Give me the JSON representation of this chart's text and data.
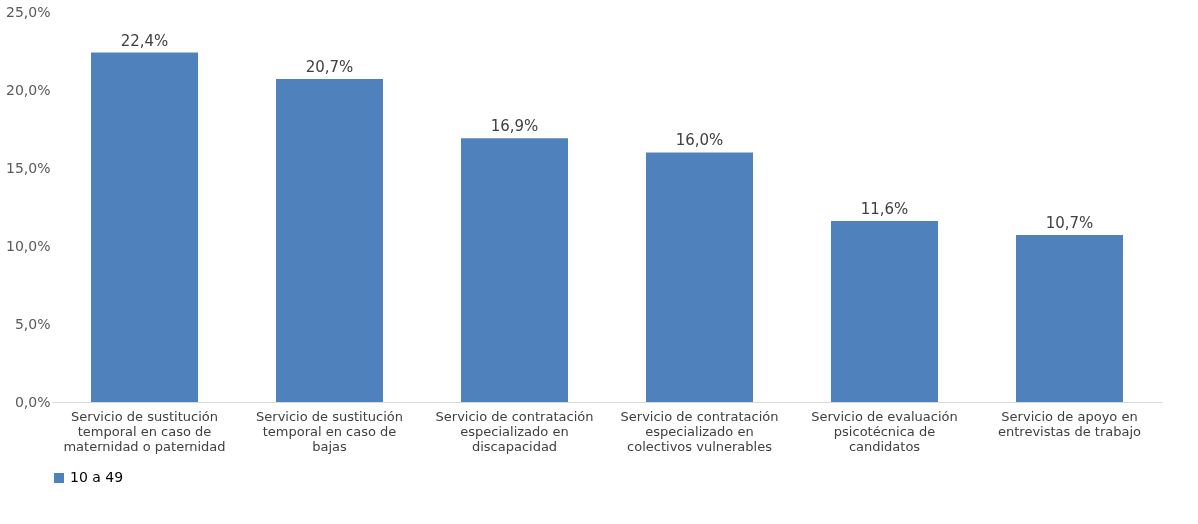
{
  "chart_data": {
    "type": "bar",
    "categories": [
      "Servicio de sustitución temporal en caso de maternidad o paternidad",
      "Servicio de sustitución temporal en caso de bajas",
      "Servicio de contratación especializado en discapacidad",
      "Servicio de contratación especializado en colectivos vulnerables",
      "Servicio de evaluación psicotécnica de candidatos",
      "Servicio de apoyo en entrevistas de trabajo"
    ],
    "series": [
      {
        "name": "10 a 49",
        "color": "#4f81bd",
        "values": [
          22.4,
          20.7,
          16.9,
          16.0,
          11.6,
          10.7
        ],
        "value_labels": [
          "22,4%",
          "20,7%",
          "16,9%",
          "16,0%",
          "11,6%",
          "10,7%"
        ]
      }
    ],
    "ylim": [
      0,
      25
    ],
    "yticks": [
      {
        "value": 0,
        "label": "0,0%"
      },
      {
        "value": 5,
        "label": "5,0%"
      },
      {
        "value": 10,
        "label": "10,0%"
      },
      {
        "value": 15,
        "label": "15,0%"
      },
      {
        "value": 20,
        "label": "20,0%"
      },
      {
        "value": 25,
        "label": "25,0%"
      }
    ],
    "grid": false,
    "legend": "bottom"
  }
}
